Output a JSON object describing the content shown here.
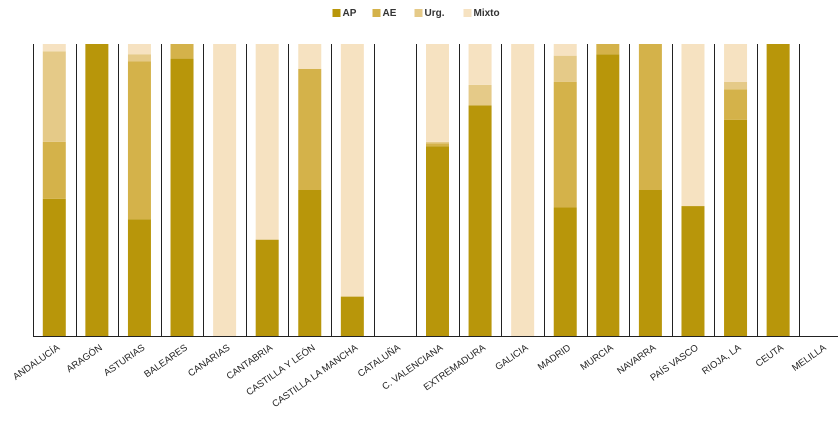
{
  "chart_data": {
    "type": "bar",
    "stacked": true,
    "normalized": true,
    "title": "",
    "xlabel": "",
    "ylabel": "",
    "ylim": [
      0,
      100
    ],
    "grid": false,
    "legend_position": "top-center",
    "categories": [
      "ANDALUCÍA",
      "ARAGÓN",
      "ASTURIAS",
      "BALEARES",
      "CANARIAS",
      "CANTABRIA",
      "CASTILLA Y LEÓN",
      "CASTILLA LA MANCHA",
      "CATALUÑA",
      "C. VALENCIANA",
      "EXTREMADURA",
      "GALICIA",
      "MADRID",
      "MURCIA",
      "NAVARRA",
      "PAÍS VASCO",
      "RIOJA, LA",
      "CEUTA",
      "MELILLA"
    ],
    "series": [
      {
        "name": "AP",
        "color": "#b8960a",
        "values": [
          47,
          100,
          40,
          95,
          0,
          33,
          50,
          13.5,
          0,
          65,
          79,
          0,
          44,
          96.5,
          50,
          44.5,
          74,
          100,
          0
        ]
      },
      {
        "name": "AE",
        "color": "#d4b24a",
        "values": [
          19.5,
          0,
          54,
          5,
          0,
          0,
          41.5,
          0,
          0,
          1,
          0,
          0,
          43,
          3.5,
          50,
          0,
          10.5,
          0,
          0
        ]
      },
      {
        "name": "Urg.",
        "color": "#e5ca88",
        "values": [
          31,
          0,
          2.5,
          0,
          0,
          0,
          0,
          0,
          0,
          0.5,
          7,
          0,
          9,
          0,
          0,
          0,
          2.5,
          0,
          0
        ]
      },
      {
        "name": "Mixto",
        "color": "#f6e2c1",
        "values": [
          2.5,
          0,
          3.5,
          0,
          100,
          67,
          8.5,
          86.5,
          0,
          33.5,
          14,
          100,
          4,
          0,
          0,
          55.5,
          13,
          0,
          0
        ]
      }
    ]
  }
}
